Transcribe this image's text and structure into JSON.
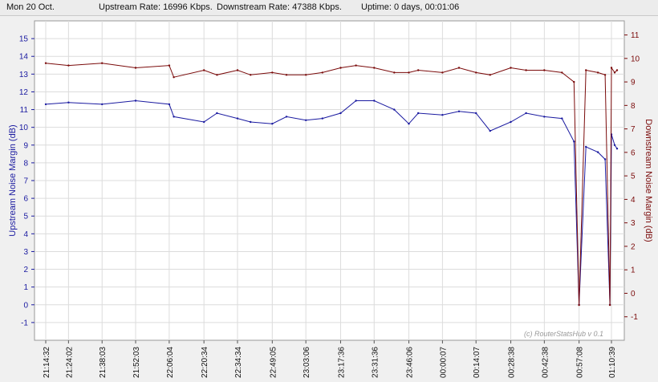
{
  "status": {
    "date": "Mon 20 Oct.",
    "upstream_rate": "Upstream Rate: 16996 Kbps.",
    "downstream_rate": "Downstream Rate: 47388 Kbps.",
    "uptime": "Uptime: 0 days, 00:01:06"
  },
  "colors": {
    "upstream": "#1a1aa0",
    "downstream": "#7a0a0a",
    "grid": "#dcdcdc",
    "axis": "#999999"
  },
  "chart_data": {
    "type": "line",
    "ylabel_left": "Upstream Noise Margin (dB)",
    "ylabel_right": "Downstream Noise Margin (dB)",
    "watermark": "(c) RouterStatsHub v 0.1",
    "ylim_left": [
      -2,
      16
    ],
    "ylim_right": [
      -2,
      11.6
    ],
    "yticks_left": [
      -1,
      0,
      1,
      2,
      3,
      4,
      5,
      6,
      7,
      8,
      9,
      10,
      11,
      12,
      13,
      14,
      15
    ],
    "yticks_right": [
      -1,
      0,
      1,
      2,
      3,
      4,
      5,
      6,
      7,
      8,
      9,
      10,
      11
    ],
    "x_ticks": [
      "21:14:32",
      "21:24:02",
      "21:38:03",
      "21:52:03",
      "22:06:04",
      "22:20:34",
      "22:34:34",
      "22:49:05",
      "23:03:06",
      "23:17:36",
      "23:31:36",
      "23:46:06",
      "00:00:07",
      "00:14:07",
      "00:28:38",
      "00:42:38",
      "00:57:08",
      "01:10:39"
    ],
    "series": [
      {
        "name": "Upstream Noise Margin (dB)",
        "axis": "left",
        "x": [
          "21:14:32",
          "21:24:02",
          "21:38:03",
          "21:52:03",
          "22:06:04",
          "22:08:00",
          "22:20:34",
          "22:26:00",
          "22:34:34",
          "22:40:00",
          "22:49:05",
          "22:55:00",
          "23:03:06",
          "23:10:00",
          "23:17:36",
          "23:24:00",
          "23:31:36",
          "23:40:00",
          "23:46:06",
          "23:50:00",
          "00:00:07",
          "00:07:00",
          "00:14:07",
          "00:20:00",
          "00:28:38",
          "00:35:00",
          "00:42:38",
          "00:50:00",
          "00:55:00",
          "00:57:08",
          "01:00:00",
          "01:05:00",
          "01:08:00",
          "01:10:00",
          "01:10:39",
          "01:12:00",
          "01:13:00"
        ],
        "y": [
          11.3,
          11.4,
          11.3,
          11.5,
          11.3,
          10.6,
          10.3,
          10.8,
          10.5,
          10.3,
          10.2,
          10.6,
          10.4,
          10.5,
          10.8,
          11.5,
          11.5,
          11.0,
          10.2,
          10.8,
          10.7,
          10.9,
          10.8,
          9.8,
          10.3,
          10.8,
          10.6,
          10.5,
          9.2,
          0.0,
          8.9,
          8.6,
          8.2,
          0.0,
          9.6,
          9.0,
          8.8
        ]
      },
      {
        "name": "Downstream Noise Margin (dB)",
        "axis": "right",
        "x": [
          "21:14:32",
          "21:24:02",
          "21:38:03",
          "21:52:03",
          "22:06:04",
          "22:08:00",
          "22:20:34",
          "22:26:00",
          "22:34:34",
          "22:40:00",
          "22:49:05",
          "22:55:00",
          "23:03:06",
          "23:10:00",
          "23:17:36",
          "23:24:00",
          "23:31:36",
          "23:40:00",
          "23:46:06",
          "23:50:00",
          "00:00:07",
          "00:07:00",
          "00:14:07",
          "00:20:00",
          "00:28:38",
          "00:35:00",
          "00:42:38",
          "00:50:00",
          "00:55:00",
          "00:57:08",
          "01:00:00",
          "01:05:00",
          "01:08:00",
          "01:10:00",
          "01:10:39",
          "01:12:00",
          "01:13:00"
        ],
        "y": [
          9.8,
          9.7,
          9.8,
          9.6,
          9.7,
          9.2,
          9.5,
          9.3,
          9.5,
          9.3,
          9.4,
          9.3,
          9.3,
          9.4,
          9.6,
          9.7,
          9.6,
          9.4,
          9.4,
          9.5,
          9.4,
          9.6,
          9.4,
          9.3,
          9.6,
          9.5,
          9.5,
          9.4,
          9.0,
          -0.5,
          9.5,
          9.4,
          9.3,
          -0.5,
          9.6,
          9.4,
          9.5
        ]
      }
    ]
  }
}
